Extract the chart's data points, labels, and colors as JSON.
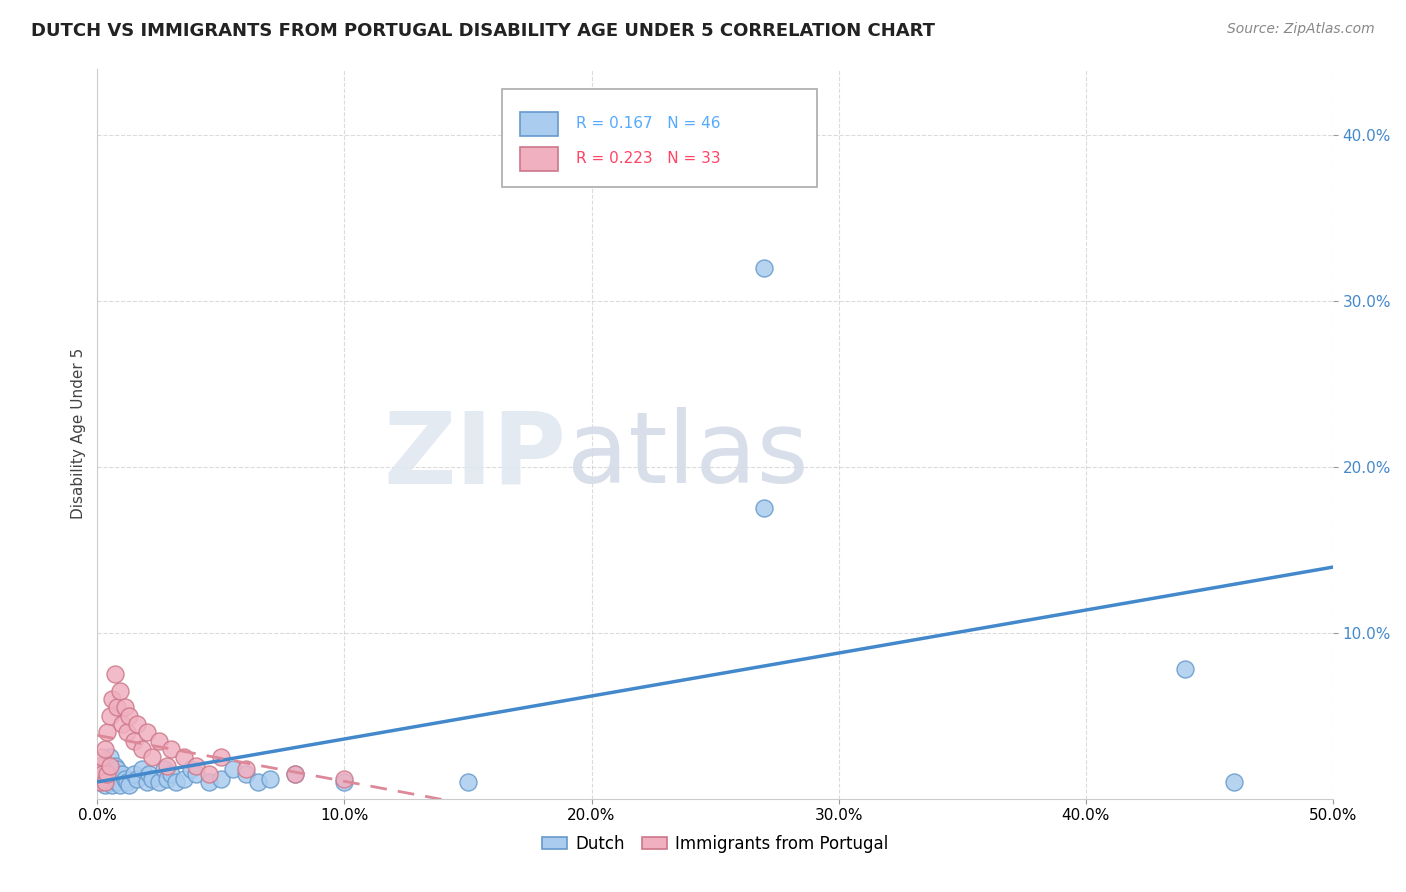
{
  "title": "DUTCH VS IMMIGRANTS FROM PORTUGAL DISABILITY AGE UNDER 5 CORRELATION CHART",
  "source": "Source: ZipAtlas.com",
  "ylabel": "Disability Age Under 5",
  "xlim": [
    0.0,
    0.5
  ],
  "ylim": [
    0.0,
    0.44
  ],
  "xtick_vals": [
    0.0,
    0.1,
    0.2,
    0.3,
    0.4,
    0.5
  ],
  "ytick_vals": [
    0.1,
    0.2,
    0.3,
    0.4
  ],
  "dutch_color": "#aaccee",
  "dutch_edge_color": "#6699cc",
  "portugal_color": "#f0b0c0",
  "portugal_edge_color": "#cc7788",
  "dutch_line_color": "#4488cc",
  "portugal_line_color": "#dd8899",
  "dutch_R": 0.167,
  "dutch_N": 46,
  "portugal_R": 0.223,
  "portugal_N": 33,
  "legend_dutch_color": "#55aaff",
  "legend_port_color": "#ff4466",
  "dutch_x": [
    0.001,
    0.002,
    0.003,
    0.003,
    0.004,
    0.004,
    0.005,
    0.005,
    0.006,
    0.006,
    0.007,
    0.007,
    0.008,
    0.008,
    0.009,
    0.01,
    0.011,
    0.012,
    0.013,
    0.015,
    0.016,
    0.018,
    0.02,
    0.021,
    0.022,
    0.025,
    0.027,
    0.028,
    0.03,
    0.032,
    0.035,
    0.038,
    0.04,
    0.045,
    0.05,
    0.055,
    0.06,
    0.065,
    0.07,
    0.08,
    0.1,
    0.15,
    0.27,
    0.27,
    0.44,
    0.46
  ],
  "dutch_y": [
    0.01,
    0.015,
    0.008,
    0.02,
    0.012,
    0.018,
    0.01,
    0.025,
    0.008,
    0.015,
    0.012,
    0.02,
    0.01,
    0.018,
    0.008,
    0.015,
    0.012,
    0.01,
    0.008,
    0.015,
    0.012,
    0.018,
    0.01,
    0.015,
    0.012,
    0.01,
    0.018,
    0.012,
    0.015,
    0.01,
    0.012,
    0.018,
    0.015,
    0.01,
    0.012,
    0.018,
    0.015,
    0.01,
    0.012,
    0.015,
    0.01,
    0.01,
    0.32,
    0.175,
    0.078,
    0.01
  ],
  "portugal_x": [
    0.001,
    0.001,
    0.002,
    0.002,
    0.003,
    0.003,
    0.004,
    0.004,
    0.005,
    0.005,
    0.006,
    0.007,
    0.008,
    0.009,
    0.01,
    0.011,
    0.012,
    0.013,
    0.015,
    0.016,
    0.018,
    0.02,
    0.022,
    0.025,
    0.028,
    0.03,
    0.035,
    0.04,
    0.045,
    0.05,
    0.06,
    0.08,
    0.1
  ],
  "portugal_y": [
    0.01,
    0.02,
    0.015,
    0.025,
    0.01,
    0.03,
    0.015,
    0.04,
    0.02,
    0.05,
    0.06,
    0.075,
    0.055,
    0.065,
    0.045,
    0.055,
    0.04,
    0.05,
    0.035,
    0.045,
    0.03,
    0.04,
    0.025,
    0.035,
    0.02,
    0.03,
    0.025,
    0.02,
    0.015,
    0.025,
    0.018,
    0.015,
    0.012
  ]
}
